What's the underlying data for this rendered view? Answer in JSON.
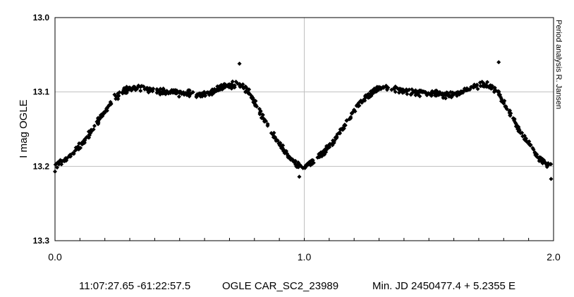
{
  "chart_data": {
    "type": "scatter",
    "title": "",
    "xlabel": "",
    "ylabel": "I mag OGLE",
    "side_note": "Period analysis  R. Jansen",
    "xlim": [
      0.0,
      2.0
    ],
    "ylim": [
      13.0,
      13.3
    ],
    "y_inverted": true,
    "grid": true,
    "x_ticks": [
      0.0,
      1.0,
      2.0
    ],
    "x_tick_labels": [
      "0.0",
      "1.0",
      "2.0"
    ],
    "y_ticks": [
      13.0,
      13.1,
      13.2,
      13.3
    ],
    "y_tick_labels": [
      "13.0",
      "13.1",
      "13.2",
      "13.3"
    ],
    "marker": "diamond",
    "marker_color": "#000000",
    "phase_curve": {
      "phase": [
        0.0,
        0.04,
        0.08,
        0.12,
        0.16,
        0.2,
        0.24,
        0.28,
        0.32,
        0.36,
        0.4,
        0.44,
        0.48,
        0.52,
        0.56,
        0.6,
        0.64,
        0.68,
        0.72,
        0.75,
        0.78,
        0.82,
        0.86,
        0.9,
        0.94,
        0.97,
        1.0
      ],
      "mag": [
        13.2,
        13.192,
        13.18,
        13.165,
        13.146,
        13.125,
        13.108,
        13.098,
        13.094,
        13.095,
        13.099,
        13.1,
        13.101,
        13.102,
        13.104,
        13.103,
        13.098,
        13.093,
        13.09,
        13.092,
        13.102,
        13.125,
        13.15,
        13.17,
        13.188,
        13.197,
        13.2
      ]
    },
    "scatter_spread": 0.006,
    "points_per_cycle": 420,
    "cycles": 2,
    "outliers": [
      {
        "x": 0.74,
        "y": 13.062
      },
      {
        "x": 1.78,
        "y": 13.06
      },
      {
        "x": 0.98,
        "y": 13.214
      },
      {
        "x": 1.99,
        "y": 13.217
      },
      {
        "x": 0.0,
        "y": 13.207
      }
    ]
  },
  "footer": {
    "coordinates": "11:07:27.65 -61:22:57.5",
    "star_id": "OGLE CAR_SC2_23989",
    "ephemeris": "Min. JD 2450477.4 + 5.2355 E"
  }
}
